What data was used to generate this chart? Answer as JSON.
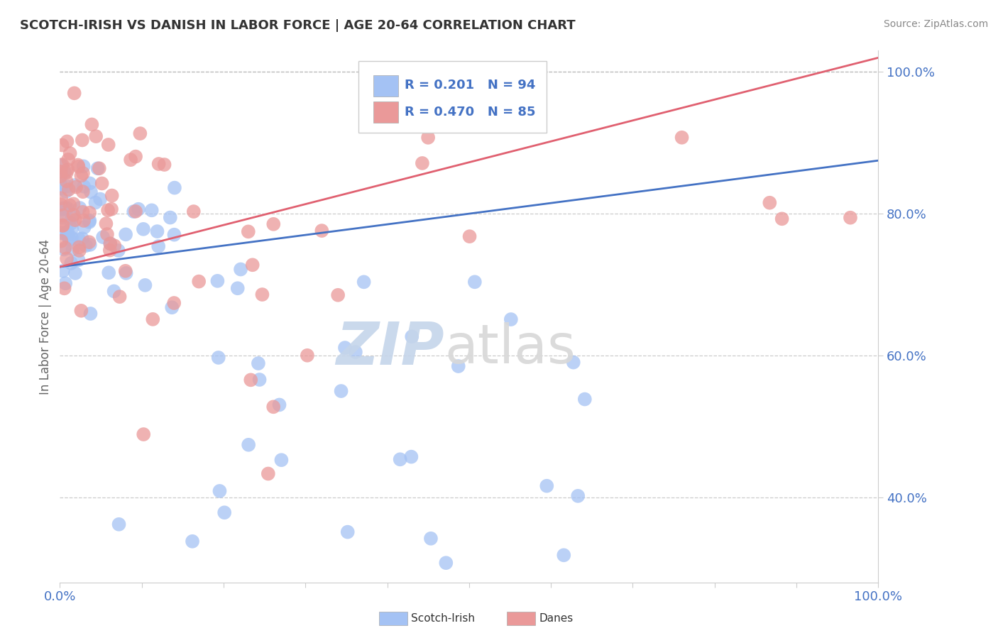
{
  "title": "SCOTCH-IRISH VS DANISH IN LABOR FORCE | AGE 20-64 CORRELATION CHART",
  "source": "Source: ZipAtlas.com",
  "ylabel": "In Labor Force | Age 20-64",
  "xlim": [
    0.0,
    1.0
  ],
  "ylim": [
    0.28,
    1.03
  ],
  "blue_R": 0.201,
  "blue_N": 94,
  "pink_R": 0.47,
  "pink_N": 85,
  "blue_color": "#a4c2f4",
  "pink_color": "#ea9999",
  "blue_line_color": "#4472c4",
  "pink_line_color": "#e06070",
  "legend_R_color": "#4472c4",
  "blue_line_y0": 0.725,
  "blue_line_y1": 0.875,
  "pink_line_y0": 0.725,
  "pink_line_y1": 1.02
}
